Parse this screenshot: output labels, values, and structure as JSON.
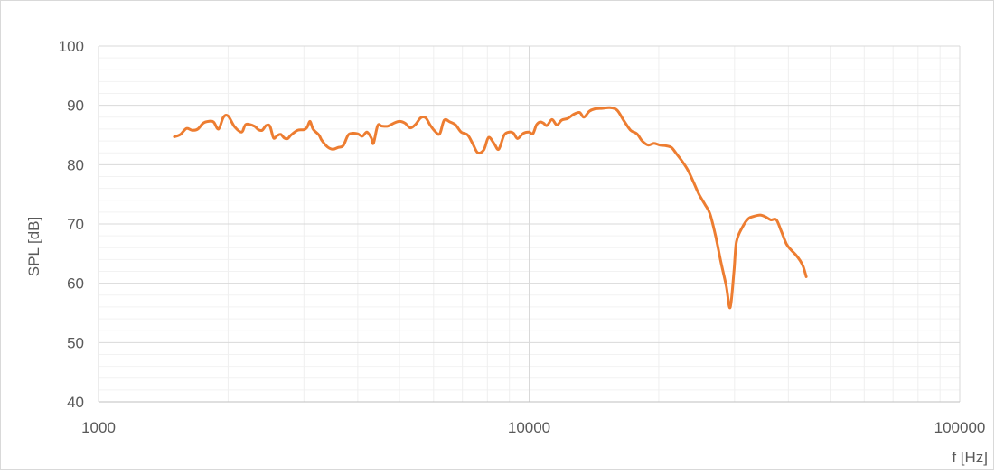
{
  "chart_data": {
    "type": "line",
    "title": "",
    "xlabel": "f [Hz]",
    "ylabel": "SPL [dB]",
    "xscale": "log",
    "xlim": [
      1000,
      100000
    ],
    "ylim": [
      40,
      100
    ],
    "x_ticks": [
      "1000",
      "10000",
      "100000"
    ],
    "y_ticks": [
      "40",
      "50",
      "60",
      "70",
      "80",
      "90",
      "100"
    ],
    "grid": true,
    "legend": "none",
    "series": [
      {
        "color": "#ed7d31",
        "points": [
          [
            1500,
            84.7
          ],
          [
            1550,
            85.1
          ],
          [
            1600,
            86.1
          ],
          [
            1650,
            85.8
          ],
          [
            1700,
            86.0
          ],
          [
            1750,
            87.0
          ],
          [
            1800,
            87.3
          ],
          [
            1850,
            87.2
          ],
          [
            1900,
            86.0
          ],
          [
            1950,
            88.0
          ],
          [
            2000,
            88.2
          ],
          [
            2070,
            86.4
          ],
          [
            2150,
            85.5
          ],
          [
            2200,
            86.8
          ],
          [
            2300,
            86.5
          ],
          [
            2350,
            85.9
          ],
          [
            2400,
            85.8
          ],
          [
            2450,
            86.6
          ],
          [
            2500,
            86.5
          ],
          [
            2550,
            84.5
          ],
          [
            2600,
            84.9
          ],
          [
            2650,
            85.1
          ],
          [
            2700,
            84.5
          ],
          [
            2750,
            84.4
          ],
          [
            2800,
            85.0
          ],
          [
            2900,
            85.8
          ],
          [
            3000,
            85.9
          ],
          [
            3050,
            86.3
          ],
          [
            3100,
            87.3
          ],
          [
            3150,
            86.0
          ],
          [
            3250,
            85.0
          ],
          [
            3300,
            84.1
          ],
          [
            3400,
            83.0
          ],
          [
            3500,
            82.6
          ],
          [
            3600,
            82.9
          ],
          [
            3700,
            83.2
          ],
          [
            3800,
            85.0
          ],
          [
            3900,
            85.3
          ],
          [
            4000,
            85.2
          ],
          [
            4100,
            84.8
          ],
          [
            4200,
            85.5
          ],
          [
            4300,
            84.5
          ],
          [
            4350,
            83.6
          ],
          [
            4450,
            86.6
          ],
          [
            4550,
            86.5
          ],
          [
            4700,
            86.5
          ],
          [
            4850,
            87.0
          ],
          [
            5000,
            87.3
          ],
          [
            5150,
            87.0
          ],
          [
            5300,
            86.2
          ],
          [
            5450,
            86.8
          ],
          [
            5600,
            87.9
          ],
          [
            5750,
            87.9
          ],
          [
            5900,
            86.6
          ],
          [
            6050,
            85.6
          ],
          [
            6200,
            85.2
          ],
          [
            6350,
            87.5
          ],
          [
            6550,
            87.2
          ],
          [
            6750,
            86.7
          ],
          [
            6950,
            85.5
          ],
          [
            7200,
            85.0
          ],
          [
            7400,
            83.5
          ],
          [
            7600,
            82.0
          ],
          [
            7850,
            82.5
          ],
          [
            8050,
            84.6
          ],
          [
            8300,
            83.5
          ],
          [
            8500,
            82.6
          ],
          [
            8750,
            85.0
          ],
          [
            9000,
            85.5
          ],
          [
            9200,
            85.3
          ],
          [
            9400,
            84.4
          ],
          [
            9700,
            85.3
          ],
          [
            10000,
            85.5
          ],
          [
            10200,
            85.2
          ],
          [
            10400,
            86.7
          ],
          [
            10600,
            87.2
          ],
          [
            10800,
            87.0
          ],
          [
            11000,
            86.6
          ],
          [
            11300,
            87.6
          ],
          [
            11600,
            86.7
          ],
          [
            11900,
            87.5
          ],
          [
            12300,
            87.8
          ],
          [
            12700,
            88.5
          ],
          [
            13100,
            88.8
          ],
          [
            13400,
            88.0
          ],
          [
            13800,
            89.0
          ],
          [
            14200,
            89.4
          ],
          [
            14800,
            89.5
          ],
          [
            15400,
            89.6
          ],
          [
            16000,
            89.2
          ],
          [
            16600,
            87.4
          ],
          [
            17200,
            85.8
          ],
          [
            17800,
            85.2
          ],
          [
            18300,
            84.0
          ],
          [
            18900,
            83.3
          ],
          [
            19500,
            83.6
          ],
          [
            20100,
            83.3
          ],
          [
            20700,
            83.2
          ],
          [
            21400,
            82.9
          ],
          [
            22000,
            81.8
          ],
          [
            22700,
            80.5
          ],
          [
            23400,
            79.0
          ],
          [
            24100,
            77.0
          ],
          [
            24800,
            75.0
          ],
          [
            25600,
            73.3
          ],
          [
            26300,
            71.7
          ],
          [
            27100,
            68.0
          ],
          [
            27900,
            63.5
          ],
          [
            28700,
            59.5
          ],
          [
            29300,
            55.9
          ],
          [
            29900,
            62.0
          ],
          [
            30300,
            67.0
          ],
          [
            31300,
            69.5
          ],
          [
            32300,
            70.9
          ],
          [
            33300,
            71.3
          ],
          [
            34400,
            71.5
          ],
          [
            35400,
            71.2
          ],
          [
            36400,
            70.7
          ],
          [
            37500,
            70.7
          ],
          [
            38500,
            68.8
          ],
          [
            39600,
            66.6
          ],
          [
            40600,
            65.6
          ],
          [
            41600,
            64.8
          ],
          [
            42600,
            63.8
          ],
          [
            43300,
            62.8
          ],
          [
            44000,
            61.1
          ]
        ]
      }
    ]
  }
}
